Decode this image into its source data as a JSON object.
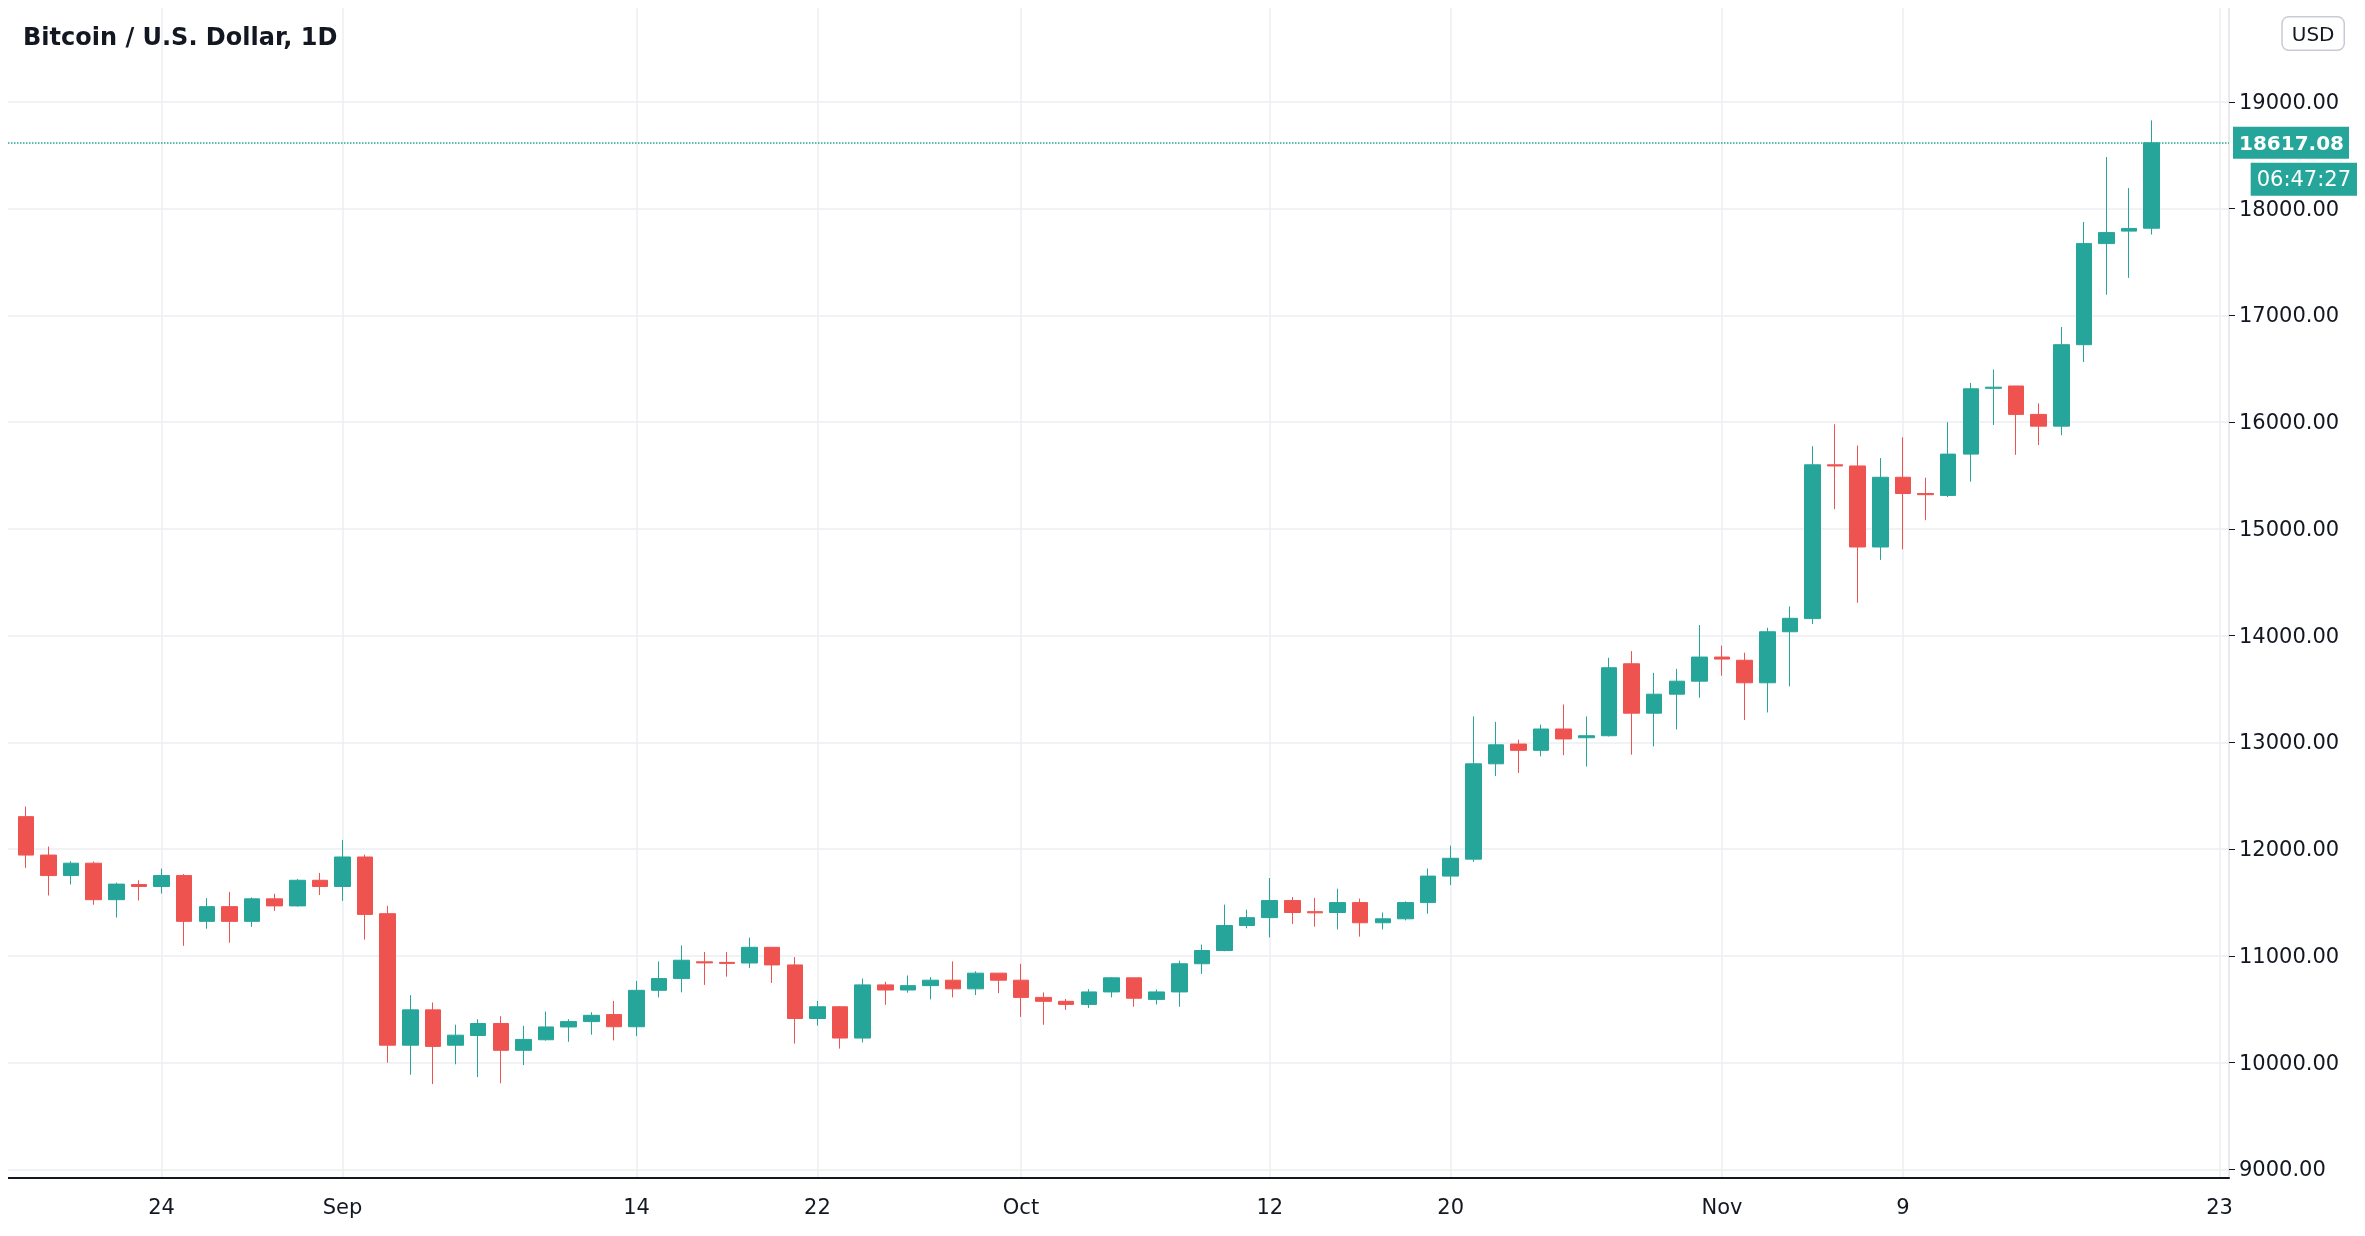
{
  "chart_data": {
    "type": "candlestick",
    "title": "Bitcoin / U.S. Dollar, 1D",
    "annotations": [
      "06:47:27",
      "USD"
    ],
    "x": [
      "--08-18",
      "--08-19",
      "--08-20",
      "--08-21",
      "--08-22",
      "--08-23",
      "--08-24",
      "--08-25",
      "--08-26",
      "--08-27",
      "--08-28",
      "--08-29",
      "--08-30",
      "--08-31",
      "--09-01",
      "--09-02",
      "--09-03",
      "--09-04",
      "--09-05",
      "--09-06",
      "--09-07",
      "--09-08",
      "--09-09",
      "--09-10",
      "--09-11",
      "--09-12",
      "--09-13",
      "--09-14",
      "--09-15",
      "--09-16",
      "--09-17",
      "--09-18",
      "--09-19",
      "--09-20",
      "--09-21",
      "--09-22",
      "--09-23",
      "--09-24",
      "--09-25",
      "--09-26",
      "--09-27",
      "--09-28",
      "--09-29",
      "--09-30",
      "--10-01",
      "--10-02",
      "--10-03",
      "--10-04",
      "--10-05",
      "--10-06",
      "--10-07",
      "--10-08",
      "--10-09",
      "--10-10",
      "--10-11",
      "--10-12",
      "--10-13",
      "--10-14",
      "--10-15",
      "--10-16",
      "--10-17",
      "--10-18",
      "--10-19",
      "--10-20",
      "--10-21",
      "--10-22",
      "--10-23",
      "--10-24",
      "--10-25",
      "--10-26",
      "--10-27",
      "--10-28",
      "--10-29",
      "--10-30",
      "--10-31",
      "--11-01",
      "--11-02",
      "--11-03",
      "--11-04",
      "--11-05",
      "--11-06",
      "--11-07",
      "--11-08",
      "--11-09",
      "--11-10",
      "--11-11",
      "--11-12",
      "--11-13",
      "--11-14",
      "--11-15",
      "--11-16",
      "--11-17",
      "--11-18",
      "--11-19",
      "--11-20"
    ],
    "ohlc": [
      [
        12305,
        12400,
        11825,
        11945
      ],
      [
        11945,
        12025,
        11567,
        11753
      ],
      [
        11753,
        11887,
        11669,
        11869
      ],
      [
        11869,
        11884,
        11480,
        11527
      ],
      [
        11527,
        11687,
        11360,
        11673
      ],
      [
        11669,
        11709,
        11520,
        11651
      ],
      [
        11651,
        11818,
        11585,
        11753
      ],
      [
        11753,
        11767,
        11095,
        11324
      ],
      [
        11324,
        11542,
        11255,
        11462
      ],
      [
        11462,
        11600,
        11124,
        11324
      ],
      [
        11324,
        11549,
        11273,
        11535
      ],
      [
        11535,
        11582,
        11422,
        11469
      ],
      [
        11469,
        11720,
        11462,
        11709
      ],
      [
        11709,
        11778,
        11571,
        11651
      ],
      [
        11651,
        12087,
        11516,
        11927
      ],
      [
        11927,
        11949,
        11153,
        11389
      ],
      [
        11396,
        11470,
        10000,
        10164
      ],
      [
        10164,
        10633,
        9887,
        10495
      ],
      [
        10495,
        10564,
        9800,
        10153
      ],
      [
        10164,
        10356,
        9985,
        10258
      ],
      [
        10255,
        10407,
        9865,
        10367
      ],
      [
        10367,
        10436,
        9807,
        10116
      ],
      [
        10116,
        10345,
        9978,
        10218
      ],
      [
        10215,
        10480,
        10207,
        10335
      ],
      [
        10335,
        10407,
        10196,
        10385
      ],
      [
        10385,
        10473,
        10262,
        10444
      ],
      [
        10451,
        10579,
        10209,
        10337
      ],
      [
        10337,
        10766,
        10249,
        10678
      ],
      [
        10678,
        10949,
        10612,
        10788
      ],
      [
        10788,
        11099,
        10659,
        10960
      ],
      [
        10945,
        11037,
        10729,
        10935
      ],
      [
        10940,
        11037,
        10806,
        10930
      ],
      [
        10934,
        11172,
        10886,
        11081
      ],
      [
        11081,
        11081,
        10747,
        10916
      ],
      [
        10916,
        10989,
        10179,
        10414
      ],
      [
        10414,
        10579,
        10348,
        10524
      ],
      [
        10524,
        10531,
        10132,
        10231
      ],
      [
        10231,
        10788,
        10190,
        10729
      ],
      [
        10729,
        10758,
        10542,
        10681
      ],
      [
        10681,
        10817,
        10656,
        10722
      ],
      [
        10722,
        10802,
        10593,
        10773
      ],
      [
        10773,
        10949,
        10612,
        10692
      ],
      [
        10692,
        10857,
        10634,
        10839
      ],
      [
        10839,
        10839,
        10652,
        10773
      ],
      [
        10773,
        10927,
        10429,
        10612
      ],
      [
        10612,
        10659,
        10355,
        10575
      ],
      [
        10575,
        10597,
        10495,
        10546
      ],
      [
        10546,
        10689,
        10513,
        10663
      ],
      [
        10663,
        10802,
        10612,
        10795
      ],
      [
        10795,
        10795,
        10524,
        10604
      ],
      [
        10593,
        10685,
        10546,
        10663
      ],
      [
        10663,
        10956,
        10524,
        10927
      ],
      [
        10927,
        11106,
        10832,
        11051
      ],
      [
        11051,
        11481,
        11044,
        11285
      ],
      [
        11285,
        11433,
        11259,
        11359
      ],
      [
        11359,
        11730,
        11174,
        11519
      ],
      [
        11519,
        11552,
        11300,
        11407
      ],
      [
        11415,
        11544,
        11274,
        11404
      ],
      [
        11407,
        11630,
        11248,
        11500
      ],
      [
        11500,
        11537,
        11181,
        11311
      ],
      [
        11311,
        11407,
        11248,
        11348
      ],
      [
        11348,
        11511,
        11333,
        11500
      ],
      [
        11500,
        11819,
        11396,
        11748
      ],
      [
        11748,
        12033,
        11663,
        11915
      ],
      [
        11907,
        13244,
        11881,
        12800
      ],
      [
        12800,
        13193,
        12685,
        12978
      ],
      [
        12985,
        13026,
        12715,
        12926
      ],
      [
        12926,
        13167,
        12870,
        13126
      ],
      [
        13126,
        13356,
        12881,
        13033
      ],
      [
        13044,
        13244,
        12774,
        13063
      ],
      [
        13063,
        13793,
        13056,
        13700
      ],
      [
        13737,
        13856,
        12885,
        13274
      ],
      [
        13274,
        13652,
        12963,
        13452
      ],
      [
        13452,
        13689,
        13122,
        13574
      ],
      [
        13574,
        14100,
        13419,
        13800
      ],
      [
        13800,
        13907,
        13626,
        13781
      ],
      [
        13770,
        13841,
        13211,
        13559
      ],
      [
        13559,
        14074,
        13281,
        14037
      ],
      [
        14037,
        14274,
        13526,
        14163
      ],
      [
        14160,
        15775,
        14109,
        15601
      ],
      [
        15601,
        15981,
        15185,
        15590
      ],
      [
        15590,
        15782,
        14308,
        14831
      ],
      [
        14831,
        15664,
        14710,
        15484
      ],
      [
        15484,
        15859,
        14809,
        15332
      ],
      [
        15332,
        15480,
        15082,
        15321
      ],
      [
        15314,
        16000,
        15299,
        15701
      ],
      [
        15701,
        16368,
        15443,
        16313
      ],
      [
        16317,
        16494,
        15974,
        16328
      ],
      [
        16339,
        16339,
        15694,
        16073
      ],
      [
        16073,
        16177,
        15786,
        15963
      ],
      [
        15963,
        16892,
        15878,
        16726
      ],
      [
        16726,
        17876,
        16564,
        17673
      ],
      [
        17673,
        18484,
        17194,
        17776
      ],
      [
        17790,
        18193,
        17352,
        17815
      ],
      [
        17817,
        18827,
        17758,
        18617.08
      ]
    ],
    "xlim": [
      "--08-17T05:00",
      "--11-23T10:00"
    ],
    "xticks": [
      {
        "value": "--08-24",
        "label": "24"
      },
      {
        "value": "--09-01",
        "label": "Sep"
      },
      {
        "value": "--09-14",
        "label": "14"
      },
      {
        "value": "--09-22",
        "label": "22"
      },
      {
        "value": "--10-01",
        "label": "Oct"
      },
      {
        "value": "--10-12",
        "label": "12"
      },
      {
        "value": "--10-20",
        "label": "20"
      },
      {
        "value": "--11-01",
        "label": "Nov"
      },
      {
        "value": "--11-09",
        "label": "9"
      },
      {
        "value": "--11-23",
        "label": "23"
      }
    ],
    "ylim": [
      8920,
      19880
    ],
    "yticks": [
      {
        "value": 9000,
        "label": "9000.00"
      },
      {
        "value": 10000,
        "label": "10000.00"
      },
      {
        "value": 11000,
        "label": "11000.00"
      },
      {
        "value": 12000,
        "label": "12000.00"
      },
      {
        "value": 13000,
        "label": "13000.00"
      },
      {
        "value": 14000,
        "label": "14000.00"
      },
      {
        "value": 15000,
        "label": "15000.00"
      },
      {
        "value": 16000,
        "label": "16000.00"
      },
      {
        "value": 17000,
        "label": "17000.00"
      },
      {
        "value": 18000,
        "label": "18000.00"
      },
      {
        "value": 19000,
        "label": "19000.00"
      }
    ],
    "ref_lines": [
      {
        "axis": "y",
        "value": 18617.08,
        "label": "18617.08",
        "color": "#26a69a",
        "line_style": "dotted"
      }
    ],
    "grid": true
  }
}
